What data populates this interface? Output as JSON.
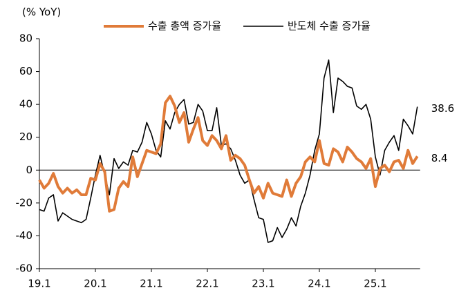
{
  "chart_data": {
    "type": "line",
    "y_axis_label": "(% YoY)",
    "categories": [
      "19.1",
      null,
      null,
      null,
      null,
      null,
      null,
      null,
      null,
      null,
      null,
      null,
      "20.1",
      null,
      null,
      null,
      null,
      null,
      null,
      null,
      null,
      null,
      null,
      null,
      "21.1",
      null,
      null,
      null,
      null,
      null,
      null,
      null,
      null,
      null,
      null,
      null,
      "22.1",
      null,
      null,
      null,
      null,
      null,
      null,
      null,
      null,
      null,
      null,
      null,
      "23.1",
      null,
      null,
      null,
      null,
      null,
      null,
      null,
      null,
      null,
      null,
      null,
      "24.1",
      null,
      null,
      null,
      null,
      null,
      null,
      null,
      null,
      null,
      null,
      null,
      "25.1",
      null,
      null,
      null,
      null,
      null,
      null,
      null,
      null,
      null
    ],
    "series": [
      {
        "name": "수출 총액 증가율",
        "color": "#e07b39",
        "values": [
          -6,
          -11,
          -8,
          -2,
          -10,
          -14,
          -11,
          -14,
          -12,
          -15,
          -15,
          -5,
          -6,
          4,
          -1,
          -25,
          -24,
          -11,
          -7,
          -10,
          8,
          -4,
          4,
          12,
          11,
          10,
          16,
          41,
          45,
          39,
          29,
          35,
          17,
          25,
          32,
          18,
          15,
          21,
          18,
          13,
          21,
          6,
          9,
          7,
          3,
          -6,
          -14,
          -10,
          -17,
          -8,
          -14,
          -15,
          -16,
          -6,
          -16,
          -8,
          -4,
          5,
          8,
          5,
          18,
          4,
          3,
          13,
          11,
          5,
          14,
          11,
          7,
          5,
          1,
          7,
          -10,
          1,
          3,
          -1,
          5,
          6,
          1,
          12,
          4,
          8.4
        ]
      },
      {
        "name": "반도체 수출 증가율",
        "color": "#000000",
        "values": [
          -24,
          -25,
          -17,
          -15,
          -31,
          -26,
          -28,
          -30,
          -31,
          -32,
          -30,
          -17,
          -3,
          9,
          -3,
          -15,
          7,
          1,
          5,
          3,
          12,
          11,
          17,
          29,
          22,
          12,
          8,
          30,
          25,
          35,
          40,
          43,
          28,
          29,
          40,
          36,
          24,
          24,
          38,
          15,
          16,
          13,
          6,
          -3,
          -8,
          -6,
          -18,
          -29,
          -30,
          -44,
          -43,
          -35,
          -41,
          -36,
          -29,
          -34,
          -22,
          -14,
          -3,
          12,
          22,
          56,
          67,
          35,
          56,
          54,
          51,
          50,
          39,
          37,
          40,
          31,
          8,
          -3,
          12,
          17,
          21,
          12,
          31,
          27,
          22,
          38.6
        ]
      }
    ],
    "ylim": [
      -60,
      80
    ],
    "yticks": [
      -60,
      -40,
      -20,
      0,
      20,
      40,
      60,
      80
    ]
  }
}
